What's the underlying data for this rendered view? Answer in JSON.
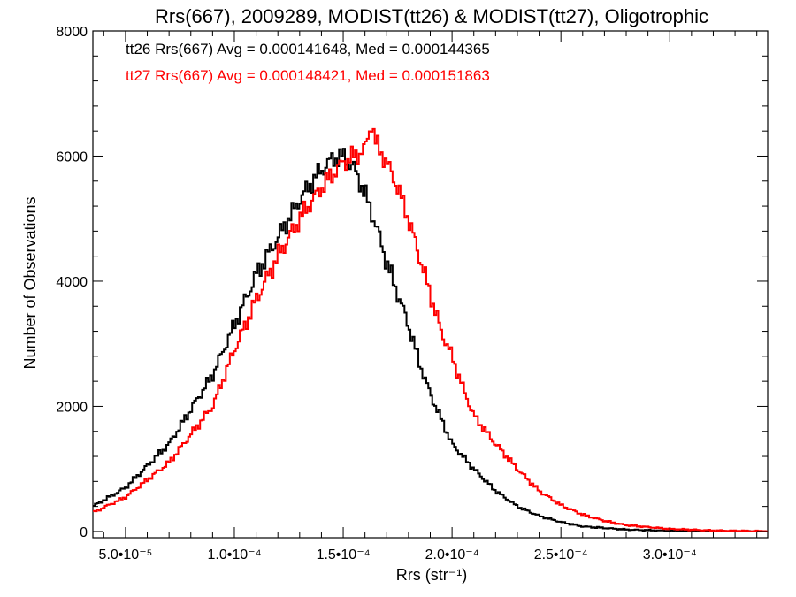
{
  "chart_data": {
    "type": "histogram",
    "title": "Rrs(667), 2009289, MODIST(tt26) & MODIST(tt27), Oligotrophic",
    "xlabel": "Rrs (str⁻¹)",
    "ylabel": "Number of Observations",
    "xlim": [
      3.5e-05,
      0.000345
    ],
    "ylim": [
      -100,
      8000
    ],
    "y_ticks": [
      {
        "value": 0,
        "label": "0"
      },
      {
        "value": 2000,
        "label": "2000"
      },
      {
        "value": 4000,
        "label": "4000"
      },
      {
        "value": 6000,
        "label": "6000"
      },
      {
        "value": 8000,
        "label": "8000"
      }
    ],
    "x_ticks": [
      {
        "value": 5e-05,
        "label": "5.0•10⁻⁵"
      },
      {
        "value": 0.0001,
        "label": "1.0•10⁻⁴"
      },
      {
        "value": 0.00015,
        "label": "1.5•10⁻⁴"
      },
      {
        "value": 0.0002,
        "label": "2.0•10⁻⁴"
      },
      {
        "value": 0.00025,
        "label": "2.5•10⁻⁴"
      },
      {
        "value": 0.0003,
        "label": "3.0•10⁻⁴"
      }
    ],
    "annotations": [
      {
        "text": "tt26 Rrs(667) Avg = 0.000141648, Med = 0.000144365",
        "color": "#000000"
      },
      {
        "text": "tt27 Rrs(667) Avg = 0.000148421, Med = 0.000151863",
        "color": "#ff0000"
      }
    ],
    "series": [
      {
        "name": "tt26",
        "color": "#000000",
        "x": [
          3.5e-05,
          5e-05,
          7e-05,
          9e-05,
          0.0001,
          0.00011,
          0.00012,
          0.00013,
          0.000138,
          0.000145,
          0.00015,
          0.000155,
          0.00016,
          0.000165,
          0.00017,
          0.000175,
          0.00018,
          0.000185,
          0.00019,
          0.000195,
          0.0002,
          0.00021,
          0.00022,
          0.00023,
          0.00024,
          0.00025,
          0.00026,
          0.00028,
          0.0003,
          0.00032,
          0.000345
        ],
        "y": [
          400,
          700,
          1400,
          2500,
          3300,
          4100,
          4700,
          5300,
          5700,
          5950,
          6000,
          5800,
          5400,
          4900,
          4300,
          3800,
          3300,
          2700,
          2200,
          1800,
          1400,
          1000,
          650,
          400,
          250,
          150,
          80,
          30,
          10,
          3,
          0
        ]
      },
      {
        "name": "tt27",
        "color": "#ff0000",
        "x": [
          3.5e-05,
          5e-05,
          7e-05,
          9e-05,
          0.0001,
          0.00011,
          0.00012,
          0.00013,
          0.00014,
          0.00015,
          0.000155,
          0.00016,
          0.000163,
          0.000165,
          0.00017,
          0.000175,
          0.00018,
          0.000185,
          0.00019,
          0.000195,
          0.0002,
          0.000205,
          0.00021,
          0.00022,
          0.00023,
          0.00024,
          0.00025,
          0.00026,
          0.00027,
          0.00028,
          0.0003,
          0.00032,
          0.000345
        ],
        "y": [
          300,
          550,
          1100,
          2000,
          2900,
          3700,
          4400,
          5000,
          5500,
          5900,
          6000,
          6100,
          6550,
          6200,
          5900,
          5500,
          5000,
          4400,
          3800,
          3200,
          2800,
          2300,
          1850,
          1400,
          1000,
          650,
          420,
          270,
          170,
          100,
          40,
          15,
          5
        ]
      }
    ]
  }
}
